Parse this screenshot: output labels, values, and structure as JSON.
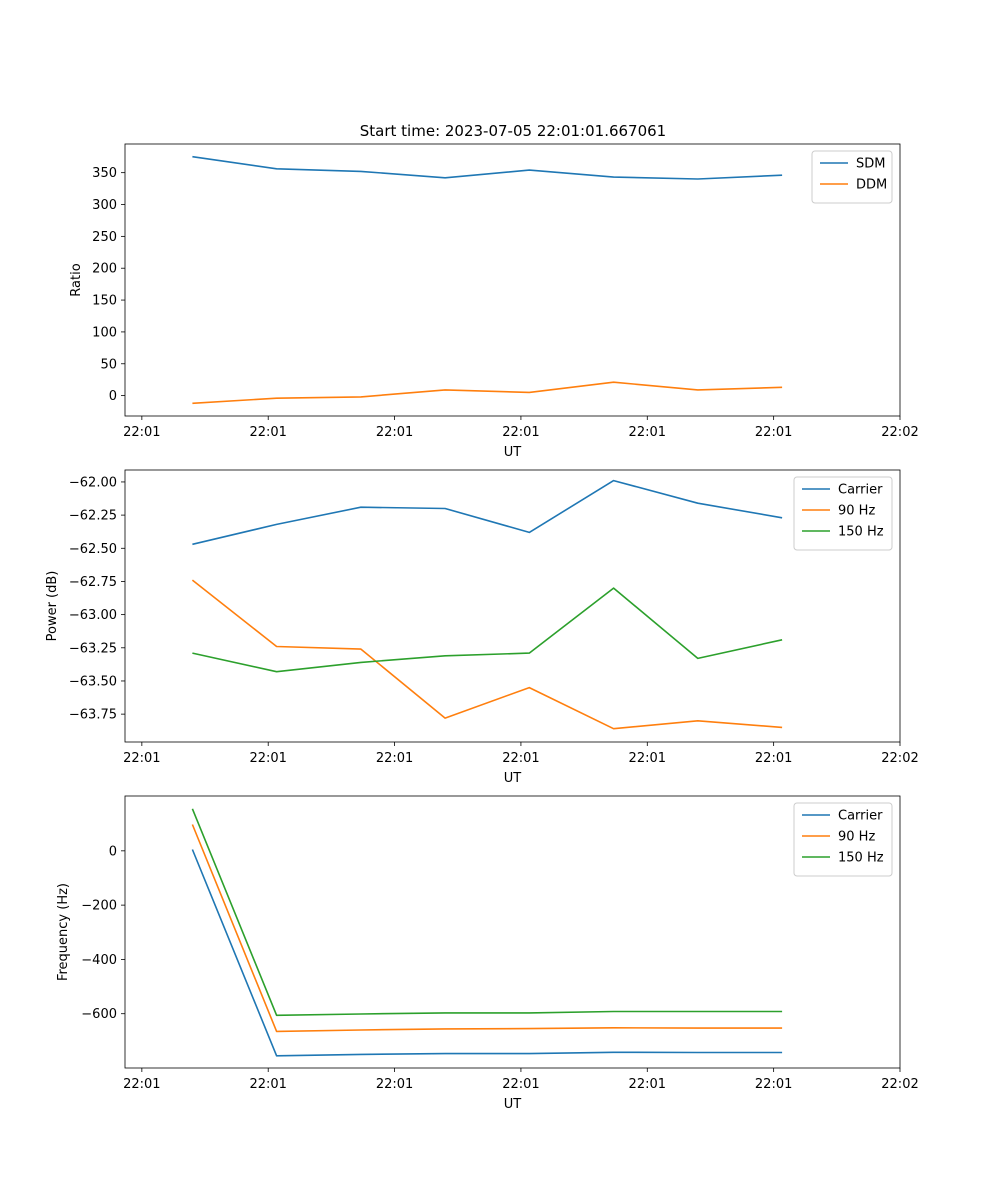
{
  "figure": {
    "suptitle": "Start time: 2023-07-05 22:01:01.667061"
  },
  "colors": {
    "blue": "#1f77b4",
    "orange": "#ff7f0e",
    "green": "#2ca02c"
  },
  "chart_data": [
    {
      "type": "line",
      "title": "Start time: 2023-07-05 22:01:01.667061",
      "xlabel": "UT",
      "ylabel": "Ratio",
      "x": [
        1,
        2,
        3,
        4,
        5,
        6,
        7,
        8
      ],
      "xlim": [
        0.2,
        9.4
      ],
      "xticks": [
        0.4,
        1.9,
        3.4,
        4.9,
        6.4,
        7.9,
        9.4
      ],
      "xtick_labels": [
        "22:01",
        "22:01",
        "22:01",
        "22:01",
        "22:01",
        "22:01",
        "22:02"
      ],
      "ylim": [
        -32,
        395
      ],
      "yticks": [
        0,
        50,
        100,
        150,
        200,
        250,
        300,
        350
      ],
      "ytick_labels": [
        "0",
        "50",
        "100",
        "150",
        "200",
        "250",
        "300",
        "350"
      ],
      "legend_loc": "top-right",
      "series": [
        {
          "name": "SDM",
          "color": "blue",
          "values": [
            375,
            356,
            352,
            342,
            354,
            343,
            340,
            346
          ]
        },
        {
          "name": "DDM",
          "color": "orange",
          "values": [
            -12,
            -4,
            -2,
            9,
            5,
            21,
            9,
            13
          ]
        }
      ]
    },
    {
      "type": "line",
      "xlabel": "UT",
      "ylabel": "Power (dB)",
      "x": [
        1,
        2,
        3,
        4,
        5,
        6,
        7,
        8
      ],
      "xlim": [
        0.2,
        9.4
      ],
      "xticks": [
        0.4,
        1.9,
        3.4,
        4.9,
        6.4,
        7.9,
        9.4
      ],
      "xtick_labels": [
        "22:01",
        "22:01",
        "22:01",
        "22:01",
        "22:01",
        "22:01",
        "22:02"
      ],
      "ylim": [
        -63.96,
        -61.91
      ],
      "yticks": [
        -63.75,
        -63.5,
        -63.25,
        -63.0,
        -62.75,
        -62.5,
        -62.25,
        -62.0
      ],
      "ytick_labels": [
        "−63.75",
        "−63.50",
        "−63.25",
        "−63.00",
        "−62.75",
        "−62.50",
        "−62.25",
        "−62.00"
      ],
      "legend_loc": "top-right",
      "series": [
        {
          "name": "Carrier",
          "color": "blue",
          "values": [
            -62.47,
            -62.32,
            -62.19,
            -62.2,
            -62.38,
            -61.99,
            -62.16,
            -62.27
          ]
        },
        {
          "name": "90 Hz",
          "color": "orange",
          "values": [
            -62.74,
            -63.24,
            -63.26,
            -63.78,
            -63.55,
            -63.86,
            -63.8,
            -63.85
          ]
        },
        {
          "name": "150 Hz",
          "color": "green",
          "values": [
            -63.29,
            -63.43,
            -63.36,
            -63.31,
            -63.29,
            -62.8,
            -63.33,
            -63.19
          ]
        }
      ]
    },
    {
      "type": "line",
      "xlabel": "UT",
      "ylabel": "Frequency (Hz)",
      "x": [
        1,
        2,
        3,
        4,
        5,
        6,
        7,
        8
      ],
      "xlim": [
        0.2,
        9.4
      ],
      "xticks": [
        0.4,
        1.9,
        3.4,
        4.9,
        6.4,
        7.9,
        9.4
      ],
      "xtick_labels": [
        "22:01",
        "22:01",
        "22:01",
        "22:01",
        "22:01",
        "22:01",
        "22:02"
      ],
      "ylim": [
        -800,
        202
      ],
      "yticks": [
        -600,
        -400,
        -200,
        0
      ],
      "ytick_labels": [
        "−600",
        "−400",
        "−200",
        "0"
      ],
      "legend_loc": "top-right",
      "series": [
        {
          "name": "Carrier",
          "color": "blue",
          "values": [
            5,
            -755,
            -750,
            -747,
            -747,
            -742,
            -743,
            -743
          ]
        },
        {
          "name": "90 Hz",
          "color": "orange",
          "values": [
            97,
            -665,
            -660,
            -656,
            -655,
            -652,
            -653,
            -653
          ]
        },
        {
          "name": "150 Hz",
          "color": "green",
          "values": [
            155,
            -606,
            -601,
            -597,
            -597,
            -592,
            -592,
            -592
          ]
        }
      ]
    }
  ]
}
